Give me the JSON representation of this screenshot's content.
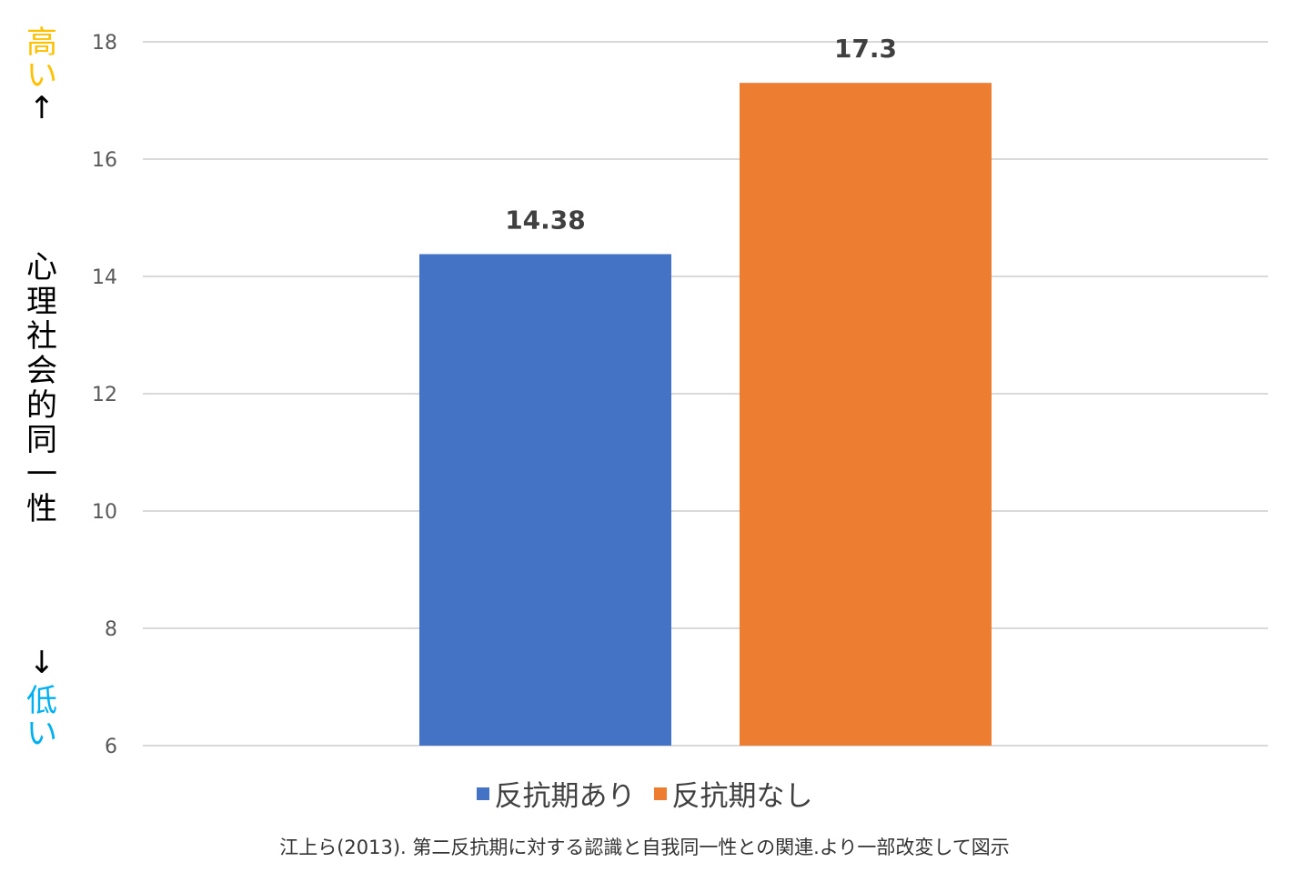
{
  "chart_data": {
    "type": "bar",
    "categories": [
      ""
    ],
    "series": [
      {
        "name": "反抗期あり",
        "values": [
          14.38
        ],
        "color": "#4472C4",
        "label": "14.38"
      },
      {
        "name": "反抗期なし",
        "values": [
          17.3
        ],
        "color": "#ED7D31",
        "label": "17.3"
      }
    ],
    "ylim": [
      6,
      18
    ],
    "yticks": [
      6,
      8,
      10,
      12,
      14,
      16,
      18
    ],
    "ylabel": "心理社会的同一性",
    "y_high_label": "高い",
    "y_high_arrow": "↑",
    "y_low_arrow": "↓",
    "y_low_label": "低い",
    "grid": true,
    "legend_position": "bottom",
    "colors": {
      "high_label": "#FFC000",
      "low_label": "#00B0F0",
      "grid": "#D9D9D9",
      "tick_text": "#595959"
    }
  },
  "caption": "江上ら(2013). 第二反抗期に対する認識と自我同一性との関連.より一部改変して図示"
}
